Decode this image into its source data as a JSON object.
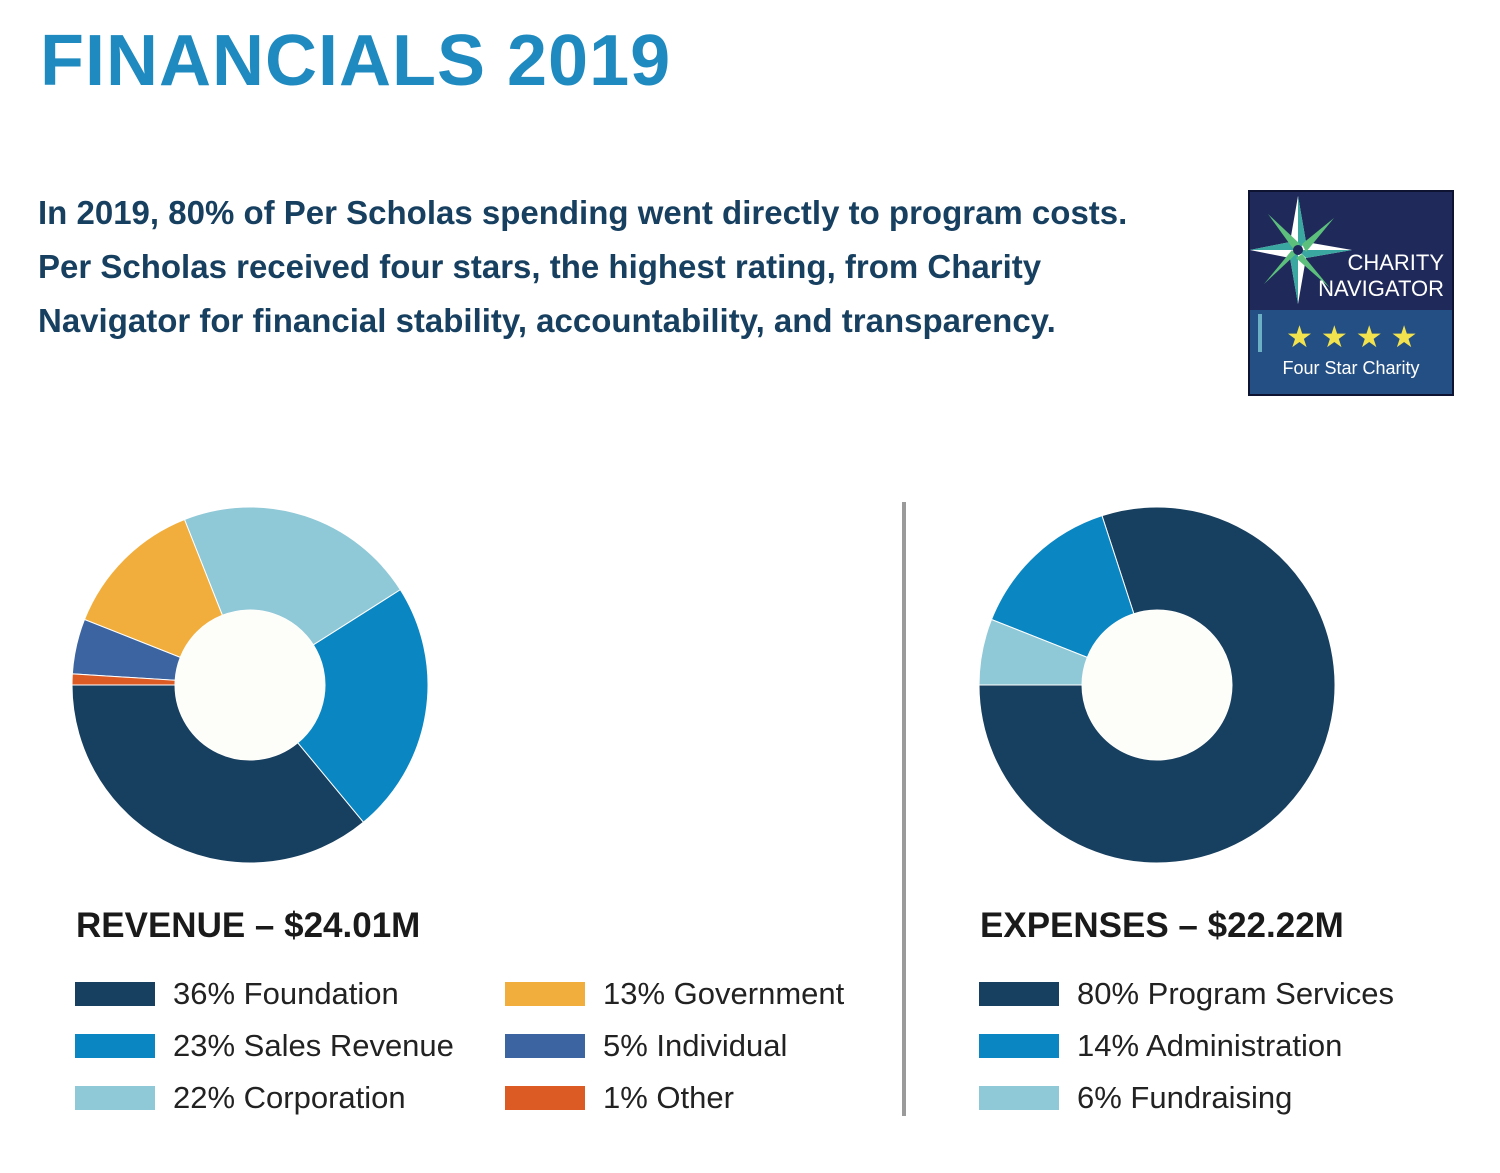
{
  "title": "FINANCIALS 2019",
  "intro": "In 2019, 80% of Per Scholas spending went directly to program costs. Per Scholas received four stars, the highest rating, from Charity Navigator for financial stability, accountability, and transparency.",
  "badge": {
    "line1": "CHARITY",
    "line2": "NAVIGATOR",
    "stars": "★★★★",
    "tagline": "Four Star Charity",
    "icon": "compass-star-icon"
  },
  "colors": {
    "title": "#1f8ac0",
    "text": "#173f5f",
    "navy": "#173f5f",
    "blue": "#0a86c2",
    "light_blue": "#8fc8d7",
    "orange": "#f1ae3d",
    "slate_blue": "#3c64a0",
    "red_orange": "#dc5a24",
    "divider": "#9a9a9a"
  },
  "chart_data": [
    {
      "type": "pie",
      "title": "REVENUE – $24.01M",
      "donut": true,
      "slices": [
        {
          "label": "36% Foundation",
          "value": 36,
          "color": "#173f5f"
        },
        {
          "label": "23% Sales Revenue",
          "value": 23,
          "color": "#0a86c2"
        },
        {
          "label": "22% Corporation",
          "value": 22,
          "color": "#8fc8d7"
        },
        {
          "label": "13% Government",
          "value": 13,
          "color": "#f1ae3d"
        },
        {
          "label": "5% Individual",
          "value": 5,
          "color": "#3c64a0"
        },
        {
          "label": "1% Other",
          "value": 1,
          "color": "#dc5a24"
        }
      ]
    },
    {
      "type": "pie",
      "title": "EXPENSES – $22.22M",
      "donut": true,
      "slices": [
        {
          "label": "80% Program Services",
          "value": 80,
          "color": "#173f5f"
        },
        {
          "label": "14% Administration",
          "value": 14,
          "color": "#0a86c2"
        },
        {
          "label": "6% Fundraising",
          "value": 6,
          "color": "#8fc8d7"
        }
      ]
    }
  ]
}
